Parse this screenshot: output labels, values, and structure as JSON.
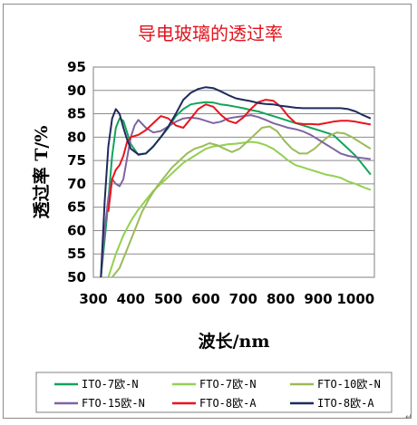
{
  "chart_data": {
    "type": "line",
    "title": "导电玻璃的透过率",
    "xlabel": "波长/nm",
    "ylabel": "透过率 T/%",
    "xlim": [
      300,
      1050
    ],
    "ylim": [
      50,
      95
    ],
    "xticks": [
      300,
      400,
      500,
      600,
      700,
      800,
      900,
      1000
    ],
    "yticks": [
      50,
      55,
      60,
      65,
      70,
      75,
      80,
      85,
      90,
      95
    ],
    "grid": true,
    "legend": "bottom",
    "series": [
      {
        "name": "ITO-7欧-N",
        "color": "#12a35a",
        "x": [
          320,
          335,
          350,
          360,
          370,
          380,
          390,
          400,
          420,
          440,
          460,
          480,
          500,
          520,
          540,
          560,
          580,
          600,
          620,
          640,
          660,
          680,
          700,
          720,
          740,
          760,
          780,
          800,
          820,
          840,
          860,
          880,
          900,
          920,
          940,
          960,
          980,
          1000,
          1020,
          1040
        ],
        "y": [
          50,
          62,
          76,
          82,
          84,
          83.5,
          81,
          78.5,
          76.2,
          76.5,
          78,
          80,
          82,
          84.5,
          86,
          87,
          87.3,
          87.5,
          87.4,
          87,
          86.8,
          86.5,
          86.2,
          85.8,
          85.5,
          85,
          84.5,
          84,
          83.5,
          83,
          82.5,
          82,
          81.5,
          81,
          80.5,
          79,
          77.5,
          76,
          74,
          72
        ]
      },
      {
        "name": "FTO-7欧-N",
        "color": "#92d050",
        "x": [
          340,
          360,
          380,
          400,
          420,
          440,
          460,
          480,
          500,
          520,
          540,
          560,
          580,
          600,
          620,
          640,
          660,
          680,
          700,
          720,
          740,
          760,
          780,
          800,
          820,
          840,
          860,
          880,
          900,
          920,
          940,
          960,
          980,
          1000,
          1020,
          1040
        ],
        "y": [
          50,
          55,
          59,
          62,
          64.5,
          66.5,
          68.5,
          70,
          71.5,
          73,
          74.5,
          75.5,
          76.5,
          77.5,
          78,
          78.2,
          78.5,
          78.6,
          78.8,
          79,
          78.8,
          78.3,
          77.5,
          76.3,
          75,
          74,
          73.5,
          73,
          72.5,
          72,
          71.7,
          71.3,
          70.5,
          70,
          69.3,
          68.7
        ]
      },
      {
        "name": "FTO-10欧-N",
        "color": "#9bbb59",
        "x": [
          350,
          370,
          390,
          410,
          430,
          450,
          470,
          490,
          510,
          530,
          550,
          570,
          590,
          610,
          630,
          650,
          670,
          690,
          710,
          730,
          750,
          770,
          790,
          810,
          830,
          850,
          870,
          890,
          910,
          930,
          950,
          970,
          990,
          1010,
          1030,
          1040
        ],
        "y": [
          50,
          52,
          56,
          60,
          64,
          67,
          69.5,
          71.5,
          73.5,
          75,
          76.5,
          77.5,
          78,
          78.7,
          78.3,
          77.5,
          76.8,
          77.5,
          79,
          80.5,
          82,
          82.3,
          81.3,
          79.2,
          77.5,
          76.5,
          76.5,
          77.5,
          79,
          80.3,
          81,
          80.8,
          80,
          79,
          78,
          77.5
        ]
      },
      {
        "name": "FTO-15欧-N",
        "color": "#8064a2",
        "x": [
          320,
          330,
          340,
          350,
          360,
          370,
          380,
          390,
          400,
          410,
          420,
          440,
          460,
          480,
          500,
          520,
          540,
          560,
          580,
          600,
          620,
          640,
          660,
          680,
          700,
          720,
          740,
          760,
          780,
          800,
          820,
          840,
          860,
          880,
          900,
          920,
          940,
          960,
          980,
          1000,
          1020,
          1040
        ],
        "y": [
          50,
          60,
          67,
          71,
          70,
          69.5,
          71,
          75.5,
          80,
          82.5,
          83.7,
          82,
          81,
          81.3,
          82.3,
          83.3,
          84,
          84.2,
          84,
          83.5,
          83,
          83.3,
          84,
          84.3,
          84.5,
          84.7,
          84.3,
          83.7,
          83,
          82.5,
          82,
          81.7,
          81.2,
          80.5,
          79.5,
          78.5,
          77.5,
          76.5,
          76,
          75.7,
          75.5,
          75.3
        ]
      },
      {
        "name": "FTO-8欧-A",
        "color": "#e8141c",
        "x": [
          340,
          350,
          360,
          370,
          380,
          390,
          400,
          420,
          440,
          460,
          480,
          500,
          520,
          540,
          560,
          580,
          600,
          620,
          640,
          660,
          680,
          700,
          720,
          740,
          760,
          780,
          800,
          820,
          840,
          860,
          880,
          900,
          920,
          940,
          960,
          980,
          1000,
          1020,
          1040
        ],
        "y": [
          64,
          71,
          73,
          74,
          76,
          79,
          80,
          80.5,
          81.5,
          83,
          84.5,
          84,
          82.5,
          82,
          84,
          86,
          87,
          86.5,
          84.8,
          83.5,
          83,
          84.2,
          86,
          87.5,
          88,
          87.8,
          86.5,
          84.5,
          83,
          82.8,
          82.8,
          82.7,
          83,
          83.3,
          83.5,
          83.5,
          83.3,
          83,
          82.7
        ]
      },
      {
        "name": "ITO-8欧-A",
        "color": "#1f2a5c",
        "x": [
          320,
          330,
          340,
          350,
          360,
          370,
          380,
          390,
          400,
          420,
          440,
          460,
          480,
          500,
          520,
          540,
          560,
          580,
          600,
          620,
          640,
          660,
          680,
          700,
          720,
          740,
          760,
          780,
          800,
          820,
          840,
          860,
          880,
          900,
          920,
          940,
          960,
          980,
          1000,
          1020,
          1040
        ],
        "y": [
          50,
          66,
          78,
          84,
          86,
          85,
          82,
          79.5,
          77.5,
          76.3,
          76.5,
          78,
          80,
          82.3,
          85,
          88,
          89.5,
          90.3,
          90.7,
          90.5,
          89.8,
          89,
          88.3,
          88,
          87.7,
          87.3,
          87.1,
          87,
          86.7,
          86.5,
          86.3,
          86.2,
          86.2,
          86.2,
          86.2,
          86.2,
          86.2,
          86,
          85.5,
          84.7,
          84
        ]
      }
    ]
  },
  "corner_mark": "↵"
}
